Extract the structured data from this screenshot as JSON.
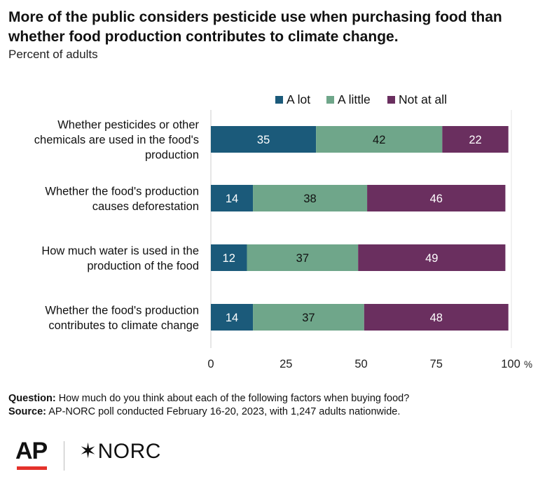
{
  "title": "More of the public considers pesticide use when purchasing food than whether food production contributes to climate change.",
  "subtitle": "Percent of adults",
  "notes": {
    "question_label": "Question:",
    "question_text": " How much do you think about each of the following factors when buying food?",
    "source_label": "Source:",
    "source_text": " AP-NORC poll conducted February 16-20, 2023, with 1,247 adults nationwide."
  },
  "logos": {
    "ap": "AP",
    "norc": "NORC",
    "norc_star": "✶"
  },
  "colors": {
    "a_lot": "#1b5a7a",
    "a_little": "#6fa68a",
    "not_at_all": "#6a2f5f"
  },
  "chart_data": {
    "type": "bar",
    "orientation": "horizontal",
    "stacked": true,
    "categories": [
      [
        "Whether pesticides or other",
        "chemicals are used in the food's",
        "production"
      ],
      [
        "Whether the food's production",
        "causes deforestation"
      ],
      [
        "How much water is used in the",
        "production of the food"
      ],
      [
        "Whether the food's production",
        "contributes to climate change"
      ]
    ],
    "series": [
      {
        "name": "A lot",
        "values": [
          35,
          14,
          12,
          14
        ],
        "color": "#1b5a7a",
        "label_color": "#ffffff"
      },
      {
        "name": "A little",
        "values": [
          42,
          38,
          37,
          37
        ],
        "color": "#6fa68a",
        "label_color": "#111111"
      },
      {
        "name": "Not at all",
        "values": [
          22,
          46,
          49,
          48
        ],
        "color": "#6a2f5f",
        "label_color": "#ffffff"
      }
    ],
    "xlim": [
      0,
      100
    ],
    "x_ticks": [
      0,
      25,
      50,
      75,
      100
    ],
    "x_tick_labels": [
      "0",
      "25",
      "50",
      "75",
      "100"
    ],
    "x_unit": "%",
    "legend": "top-right",
    "grid": false
  }
}
